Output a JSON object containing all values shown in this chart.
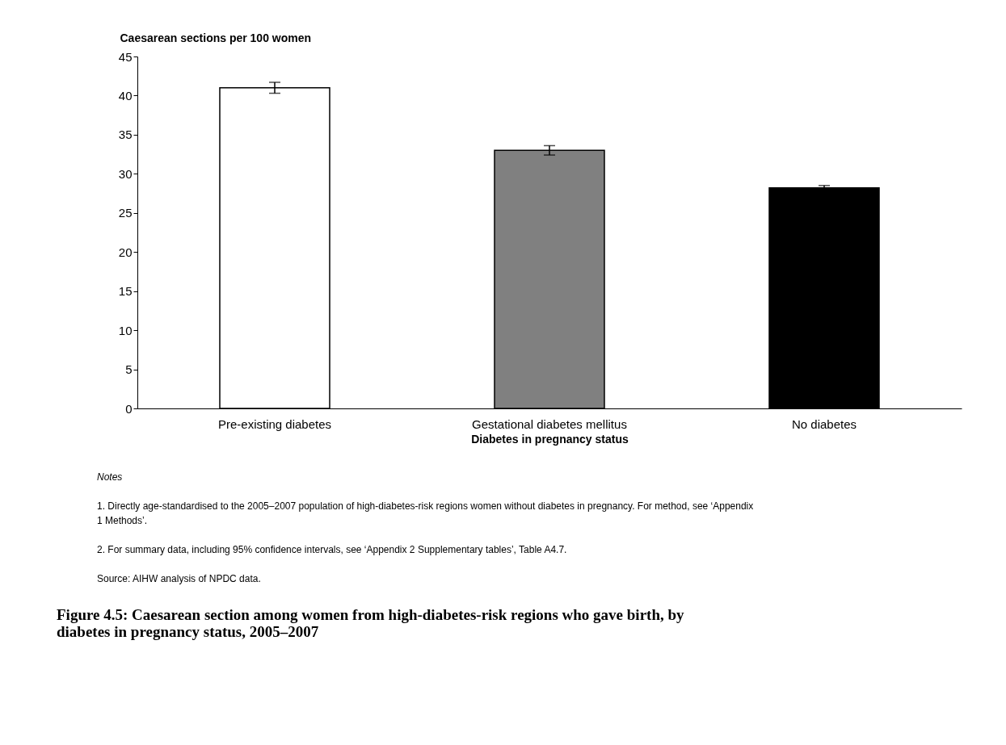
{
  "chart_data": {
    "type": "bar",
    "title": "Figure 4.5: Caesarean section among women from high-diabetes-risk regions who gave birth, by diabetes in pregnancy status, 2005–2007",
    "xlabel": "Diabetes in pregnancy status",
    "ylabel": "Caesarean sections per 100 women",
    "categories": [
      "Pre-existing diabetes",
      "Gestational diabetes mellitus",
      "No diabetes"
    ],
    "values": [
      41.0,
      33.0,
      28.2
    ],
    "colors": [
      "#ffffff",
      "#808080",
      "#000000"
    ],
    "errors": [
      0.7,
      0.6,
      0.3
    ],
    "ylim": [
      0,
      45
    ],
    "yticks": [
      0,
      5,
      10,
      15,
      20,
      25,
      30,
      35,
      40,
      45
    ],
    "grid": false,
    "annotations": [
      "Notes",
      "1. Directly age-standardised to the 2005–2007 population of high-diabetes-risk regions women without diabetes in pregnancy. For method, see ‘Appendix 1 Methods’.",
      "2. For summary data, including 95% confidence intervals, see ‘Appendix 2 Supplementary tables’, Table A4.7.",
      "Source: AIHW analysis of NPDC data."
    ]
  }
}
